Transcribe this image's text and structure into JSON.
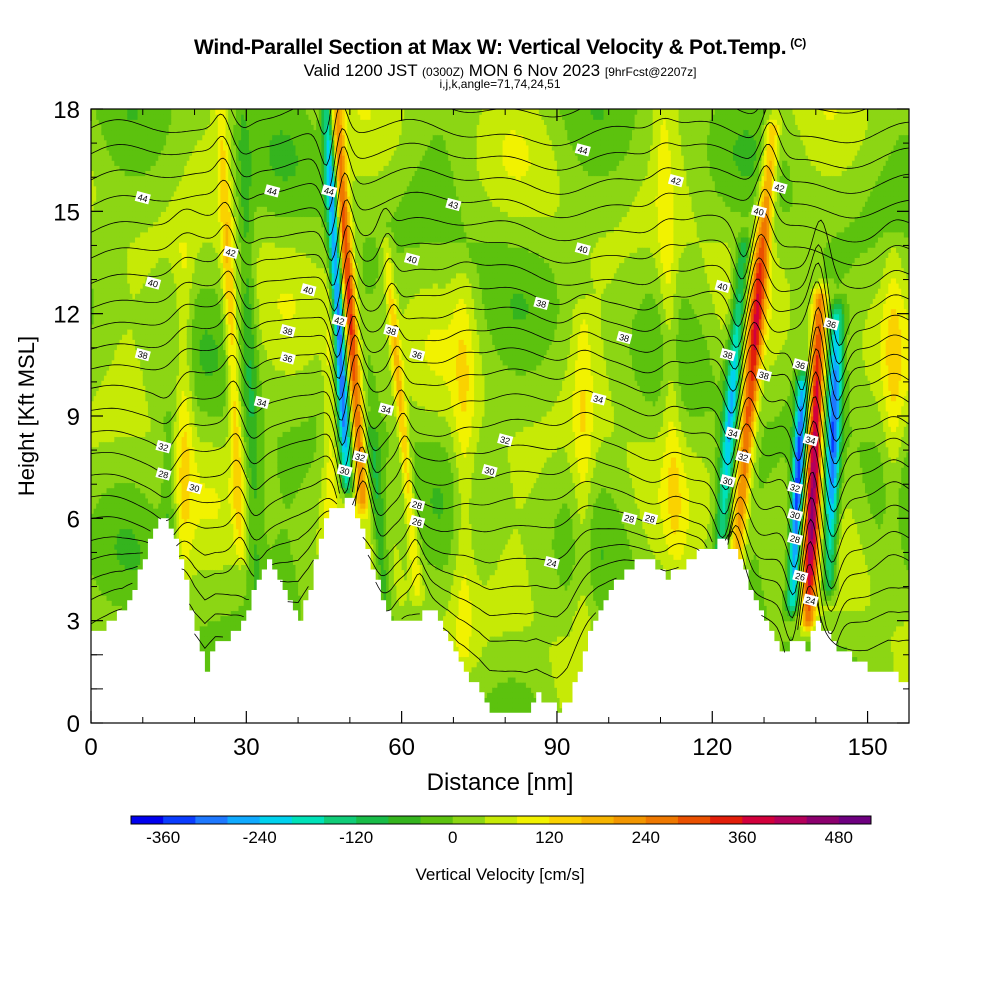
{
  "header": {
    "title": "Wind-Parallel Section at Max W: Vertical Velocity & Pot.Temp.",
    "title_unit": "(C)",
    "valid_prefix": "Valid 1200 JST",
    "valid_zulu": "(0300Z)",
    "valid_date": "MON 6 Nov 2023",
    "forecast": "[9hrFcst@2207z]",
    "indices": "i,j,k,angle=71,74,24,51"
  },
  "chart_data": {
    "type": "heatmap",
    "xlabel": "Distance [nm]",
    "ylabel": "Height [Kft MSL]",
    "xlim": [
      0,
      158
    ],
    "ylim": [
      0,
      18
    ],
    "x_ticks": [
      "0",
      "30",
      "60",
      "90",
      "120",
      "150"
    ],
    "y_ticks": [
      "0",
      "3",
      "6",
      "9",
      "12",
      "15",
      "18"
    ],
    "colorbar": {
      "label": "Vertical Velocity [cm/s]",
      "tick_labels": [
        "-360",
        "-240",
        "-120",
        "0",
        "120",
        "240",
        "360",
        "480"
      ],
      "levels_min": -400,
      "level_step": 40,
      "colors": [
        "#0000ee",
        "#0a3cff",
        "#1e78ff",
        "#10aaff",
        "#00d2ee",
        "#00e2b8",
        "#10cc78",
        "#18bc48",
        "#34b41e",
        "#5cc20e",
        "#8cd614",
        "#c6ea06",
        "#f2f200",
        "#fad200",
        "#f6b400",
        "#f29600",
        "#ee7800",
        "#ea5000",
        "#e21e0a",
        "#d2003c",
        "#b4005a",
        "#8c006e",
        "#6e0080"
      ]
    },
    "terrain_kft": [
      {
        "x": 0,
        "h": 2.7
      },
      {
        "x": 3,
        "h": 2.9
      },
      {
        "x": 6,
        "h": 3.3
      },
      {
        "x": 8,
        "h": 4.0
      },
      {
        "x": 10,
        "h": 4.9
      },
      {
        "x": 12,
        "h": 5.6
      },
      {
        "x": 14,
        "h": 6.1
      },
      {
        "x": 16,
        "h": 5.4
      },
      {
        "x": 18,
        "h": 4.2
      },
      {
        "x": 20,
        "h": 2.6
      },
      {
        "x": 22,
        "h": 1.6
      },
      {
        "x": 24,
        "h": 2.4
      },
      {
        "x": 27,
        "h": 2.6
      },
      {
        "x": 30,
        "h": 3.2
      },
      {
        "x": 32,
        "h": 4.3
      },
      {
        "x": 34,
        "h": 4.9
      },
      {
        "x": 36,
        "h": 4.2
      },
      {
        "x": 38,
        "h": 3.5
      },
      {
        "x": 40,
        "h": 3.0
      },
      {
        "x": 42,
        "h": 4.0
      },
      {
        "x": 44,
        "h": 5.5
      },
      {
        "x": 46,
        "h": 6.2
      },
      {
        "x": 48,
        "h": 6.4
      },
      {
        "x": 50,
        "h": 6.6
      },
      {
        "x": 52,
        "h": 5.6
      },
      {
        "x": 54,
        "h": 4.6
      },
      {
        "x": 56,
        "h": 3.5
      },
      {
        "x": 58,
        "h": 3.0
      },
      {
        "x": 62,
        "h": 3.0
      },
      {
        "x": 65,
        "h": 3.3
      },
      {
        "x": 67,
        "h": 3.0
      },
      {
        "x": 69,
        "h": 2.5
      },
      {
        "x": 71,
        "h": 1.7
      },
      {
        "x": 73,
        "h": 1.3
      },
      {
        "x": 75,
        "h": 1.0
      },
      {
        "x": 77,
        "h": 0.4
      },
      {
        "x": 80,
        "h": 0.3
      },
      {
        "x": 84,
        "h": 0.4
      },
      {
        "x": 86,
        "h": 0.8
      },
      {
        "x": 88,
        "h": 0.6
      },
      {
        "x": 90,
        "h": 0.3
      },
      {
        "x": 92,
        "h": 0.6
      },
      {
        "x": 94,
        "h": 1.6
      },
      {
        "x": 96,
        "h": 2.6
      },
      {
        "x": 98,
        "h": 3.4
      },
      {
        "x": 100,
        "h": 3.9
      },
      {
        "x": 103,
        "h": 4.5
      },
      {
        "x": 106,
        "h": 4.8
      },
      {
        "x": 108,
        "h": 4.8
      },
      {
        "x": 111,
        "h": 4.3
      },
      {
        "x": 114,
        "h": 4.6
      },
      {
        "x": 117,
        "h": 5.0
      },
      {
        "x": 120,
        "h": 5.1
      },
      {
        "x": 122,
        "h": 5.4
      },
      {
        "x": 124,
        "h": 5.0
      },
      {
        "x": 126,
        "h": 4.4
      },
      {
        "x": 128,
        "h": 3.5
      },
      {
        "x": 130,
        "h": 3.0
      },
      {
        "x": 132,
        "h": 2.4
      },
      {
        "x": 134,
        "h": 2.0
      },
      {
        "x": 136,
        "h": 2.5
      },
      {
        "x": 138,
        "h": 2.2
      },
      {
        "x": 140,
        "h": 3.0
      },
      {
        "x": 142,
        "h": 2.6
      },
      {
        "x": 144,
        "h": 2.2
      },
      {
        "x": 146,
        "h": 2.0
      },
      {
        "x": 148,
        "h": 1.8
      },
      {
        "x": 150,
        "h": 1.6
      },
      {
        "x": 154,
        "h": 1.6
      },
      {
        "x": 156,
        "h": 1.3
      },
      {
        "x": 158,
        "h": 1.3
      }
    ],
    "updrafts": [
      {
        "x": 52.5,
        "tilt": -0.45,
        "w": 330,
        "sigma": 1.3,
        "z0": 6.5,
        "z1": 18
      },
      {
        "x": 124.5,
        "tilt": 0.55,
        "w": 300,
        "sigma": 1.5,
        "z0": 4.5,
        "z1": 17.5
      },
      {
        "x": 138.5,
        "tilt": 0.25,
        "w": 420,
        "sigma": 1.4,
        "z0": 3.0,
        "z1": 12.5
      },
      {
        "x": 29.0,
        "tilt": -0.3,
        "w": 140,
        "sigma": 1.2,
        "z0": 5.0,
        "z1": 18
      },
      {
        "x": 63.0,
        "tilt": -0.6,
        "w": 150,
        "sigma": 1.0,
        "z0": 4.0,
        "z1": 14
      },
      {
        "x": 46.0,
        "tilt": 0.1,
        "w": 90,
        "sigma": 1.6,
        "z0": 5.0,
        "z1": 15
      },
      {
        "x": 18.0,
        "tilt": 0.0,
        "w": 90,
        "sigma": 1.8,
        "z0": 4.5,
        "z1": 14
      },
      {
        "x": 72.0,
        "tilt": 0.0,
        "w": 80,
        "sigma": 2.2,
        "z0": 2.0,
        "z1": 13
      },
      {
        "x": 95.0,
        "tilt": 0.0,
        "w": 80,
        "sigma": 2.0,
        "z0": 3.0,
        "z1": 12
      },
      {
        "x": 113.0,
        "tilt": -0.2,
        "w": 80,
        "sigma": 1.8,
        "z0": 5.0,
        "z1": 18
      },
      {
        "x": 155.0,
        "tilt": 0.0,
        "w": 70,
        "sigma": 2.0,
        "z0": 5.0,
        "z1": 14
      }
    ],
    "downdrafts": [
      {
        "x": 49.5,
        "tilt": -0.35,
        "w": -380,
        "sigma": 1.2,
        "z0": 7.0,
        "z1": 18
      },
      {
        "x": 121.5,
        "tilt": 0.5,
        "w": -260,
        "sigma": 1.4,
        "z0": 5.0,
        "z1": 14
      },
      {
        "x": 135.5,
        "tilt": 0.3,
        "w": -380,
        "sigma": 1.2,
        "z0": 3.5,
        "z1": 10
      },
      {
        "x": 142.5,
        "tilt": 0.2,
        "w": -330,
        "sigma": 1.4,
        "z0": 4.0,
        "z1": 12
      },
      {
        "x": 57.0,
        "tilt": -0.5,
        "w": -130,
        "sigma": 1.5,
        "z0": 3.0,
        "z1": 8.5
      },
      {
        "x": 32.0,
        "tilt": -0.2,
        "w": -90,
        "sigma": 1.5,
        "z0": 4.0,
        "z1": 18
      },
      {
        "x": 15.0,
        "tilt": 0.0,
        "w": -70,
        "sigma": 1.5,
        "z0": 3.0,
        "z1": 9
      }
    ],
    "isentropes": {
      "levels_min": 22,
      "level_step": 1,
      "level_count": 25,
      "base_height_kft": [
        1.4,
        2.6,
        3.3,
        3.9,
        4.5,
        5.1,
        5.8,
        6.5,
        7.2,
        7.9,
        8.6,
        9.3,
        10.0,
        10.6,
        11.2,
        11.8,
        12.4,
        13.1,
        13.8,
        14.5,
        15.2,
        15.9,
        16.6,
        17.3,
        18.1
      ],
      "labels": [
        {
          "text": "44",
          "x": 10,
          "z": 15.4
        },
        {
          "text": "44",
          "x": 35,
          "z": 15.6
        },
        {
          "text": "44",
          "x": 46,
          "z": 15.6
        },
        {
          "text": "44",
          "x": 95,
          "z": 16.8
        },
        {
          "text": "43",
          "x": 70,
          "z": 15.2
        },
        {
          "text": "42",
          "x": 113,
          "z": 15.9
        },
        {
          "text": "42",
          "x": 133,
          "z": 15.7
        },
        {
          "text": "42",
          "x": 27,
          "z": 13.8
        },
        {
          "text": "40",
          "x": 12,
          "z": 12.9
        },
        {
          "text": "40",
          "x": 42,
          "z": 12.7
        },
        {
          "text": "40",
          "x": 62,
          "z": 13.6
        },
        {
          "text": "40",
          "x": 95,
          "z": 13.9
        },
        {
          "text": "40",
          "x": 129,
          "z": 15.0
        },
        {
          "text": "40",
          "x": 122,
          "z": 12.8
        },
        {
          "text": "42",
          "x": 48,
          "z": 11.8
        },
        {
          "text": "38",
          "x": 10,
          "z": 10.8
        },
        {
          "text": "38",
          "x": 38,
          "z": 11.5
        },
        {
          "text": "38",
          "x": 58,
          "z": 11.5
        },
        {
          "text": "38",
          "x": 87,
          "z": 12.3
        },
        {
          "text": "38",
          "x": 103,
          "z": 11.3
        },
        {
          "text": "38",
          "x": 123,
          "z": 10.8
        },
        {
          "text": "38",
          "x": 130,
          "z": 10.2
        },
        {
          "text": "36",
          "x": 38,
          "z": 10.7
        },
        {
          "text": "36",
          "x": 63,
          "z": 10.8
        },
        {
          "text": "36",
          "x": 143,
          "z": 11.7
        },
        {
          "text": "36",
          "x": 137,
          "z": 10.5
        },
        {
          "text": "34",
          "x": 33,
          "z": 9.4
        },
        {
          "text": "34",
          "x": 57,
          "z": 9.2
        },
        {
          "text": "34",
          "x": 98,
          "z": 9.5
        },
        {
          "text": "34",
          "x": 124,
          "z": 8.5
        },
        {
          "text": "34",
          "x": 139,
          "z": 8.3
        },
        {
          "text": "32",
          "x": 14,
          "z": 8.1
        },
        {
          "text": "32",
          "x": 52,
          "z": 7.8
        },
        {
          "text": "32",
          "x": 80,
          "z": 8.3
        },
        {
          "text": "32",
          "x": 126,
          "z": 7.8
        },
        {
          "text": "32",
          "x": 136,
          "z": 6.9
        },
        {
          "text": "30",
          "x": 20,
          "z": 6.9
        },
        {
          "text": "30",
          "x": 49,
          "z": 7.4
        },
        {
          "text": "30",
          "x": 77,
          "z": 7.4
        },
        {
          "text": "30",
          "x": 123,
          "z": 7.1
        },
        {
          "text": "30",
          "x": 136,
          "z": 6.1
        },
        {
          "text": "28",
          "x": 14,
          "z": 7.3
        },
        {
          "text": "28",
          "x": 63,
          "z": 6.4
        },
        {
          "text": "28",
          "x": 104,
          "z": 6.0
        },
        {
          "text": "28",
          "x": 108,
          "z": 6.0
        },
        {
          "text": "28",
          "x": 136,
          "z": 5.4
        },
        {
          "text": "26",
          "x": 63,
          "z": 5.9
        },
        {
          "text": "26",
          "x": 137,
          "z": 4.3
        },
        {
          "text": "24",
          "x": 89,
          "z": 4.7
        },
        {
          "text": "24",
          "x": 139,
          "z": 3.6
        }
      ]
    }
  }
}
